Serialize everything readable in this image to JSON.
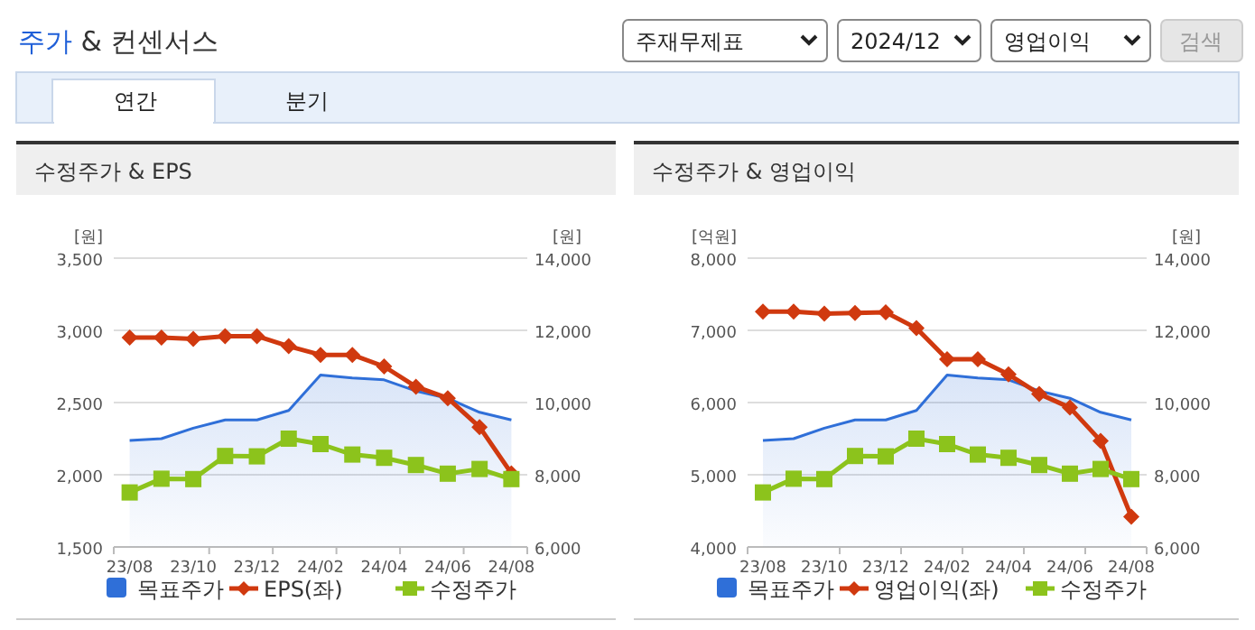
{
  "chart_data": [
    {
      "type": "other",
      "title": "주가 & 컨센서스",
      "annotations": [
        "주재무제표",
        "2024/12",
        "영업이익",
        "검색",
        "연간",
        "분기"
      ]
    },
    {
      "type": "line",
      "title": "수정주가 & EPS",
      "ylabel": "[원]",
      "y2label": "[원]",
      "categories": [
        "23/08",
        null,
        "23/10",
        null,
        "23/12",
        null,
        "24/02",
        null,
        "24/04",
        null,
        "24/06",
        null,
        "24/08"
      ],
      "ylim": [
        1500,
        3500
      ],
      "yticks": [
        {
          "value": 1500,
          "label": "1,500"
        },
        {
          "value": 2000,
          "label": "2,000"
        },
        {
          "value": 2500,
          "label": "2,500"
        },
        {
          "value": 3000,
          "label": "3,000"
        },
        {
          "value": 3500,
          "label": "3,500"
        }
      ],
      "y2lim": [
        6000,
        14000
      ],
      "y2ticks": [
        {
          "value": 6000,
          "label": "6,000"
        },
        {
          "value": 8000,
          "label": "8,000"
        },
        {
          "value": 10000,
          "label": "10,000"
        },
        {
          "value": 12000,
          "label": "12,000"
        },
        {
          "value": 14000,
          "label": "14,000"
        }
      ],
      "grid": "y",
      "legend": "bottom",
      "series": [
        {
          "name": "목표주가",
          "type": "area",
          "axis": "y2",
          "color": "#2f6fd8",
          "marker": "none",
          "values": [
            8950,
            9000,
            9290,
            9520,
            9520,
            9780,
            10760,
            10680,
            10630,
            10320,
            10120,
            9730,
            9520
          ]
        },
        {
          "name": "EPS(좌)",
          "type": "line",
          "axis": "y",
          "color": "#d0390f",
          "marker": "diamond",
          "values": [
            2950,
            2950,
            2940,
            2960,
            2960,
            2890,
            2830,
            2830,
            2750,
            2610,
            2530,
            2330,
            2010
          ]
        },
        {
          "name": "수정주가",
          "type": "line",
          "axis": "y2",
          "color": "#8cc31c",
          "marker": "square",
          "values": [
            7510,
            7890,
            7880,
            8520,
            8510,
            9000,
            8850,
            8560,
            8470,
            8270,
            8030,
            8160,
            7880
          ]
        }
      ]
    },
    {
      "type": "line",
      "title": "수정주가 & 영업이익",
      "ylabel": "[억원]",
      "y2label": "[원]",
      "categories": [
        "23/08",
        null,
        "23/10",
        null,
        "23/12",
        null,
        "24/02",
        null,
        "24/04",
        null,
        "24/06",
        null,
        "24/08"
      ],
      "ylim": [
        4000,
        8000
      ],
      "yticks": [
        {
          "value": 4000,
          "label": "4,000"
        },
        {
          "value": 5000,
          "label": "5,000"
        },
        {
          "value": 6000,
          "label": "6,000"
        },
        {
          "value": 7000,
          "label": "7,000"
        },
        {
          "value": 8000,
          "label": "8,000"
        }
      ],
      "y2lim": [
        6000,
        14000
      ],
      "y2ticks": [
        {
          "value": 6000,
          "label": "6,000"
        },
        {
          "value": 8000,
          "label": "8,000"
        },
        {
          "value": 10000,
          "label": "10,000"
        },
        {
          "value": 12000,
          "label": "12,000"
        },
        {
          "value": 14000,
          "label": "14,000"
        }
      ],
      "grid": "y",
      "legend": "bottom",
      "series": [
        {
          "name": "목표주가",
          "type": "area",
          "axis": "y2",
          "color": "#2f6fd8",
          "marker": "none",
          "values": [
            8950,
            9000,
            9290,
            9520,
            9520,
            9780,
            10760,
            10680,
            10630,
            10320,
            10120,
            9730,
            9520
          ]
        },
        {
          "name": "영업이익(좌)",
          "type": "line",
          "axis": "y",
          "color": "#d0390f",
          "marker": "diamond",
          "values": [
            7260,
            7260,
            7230,
            7240,
            7250,
            7030,
            6600,
            6600,
            6390,
            6120,
            5930,
            5470,
            4420
          ]
        },
        {
          "name": "수정주가",
          "type": "line",
          "axis": "y2",
          "color": "#8cc31c",
          "marker": "square",
          "values": [
            7510,
            7890,
            7880,
            8520,
            8510,
            9000,
            8850,
            8560,
            8470,
            8270,
            8030,
            8160,
            7880
          ]
        }
      ]
    }
  ]
}
